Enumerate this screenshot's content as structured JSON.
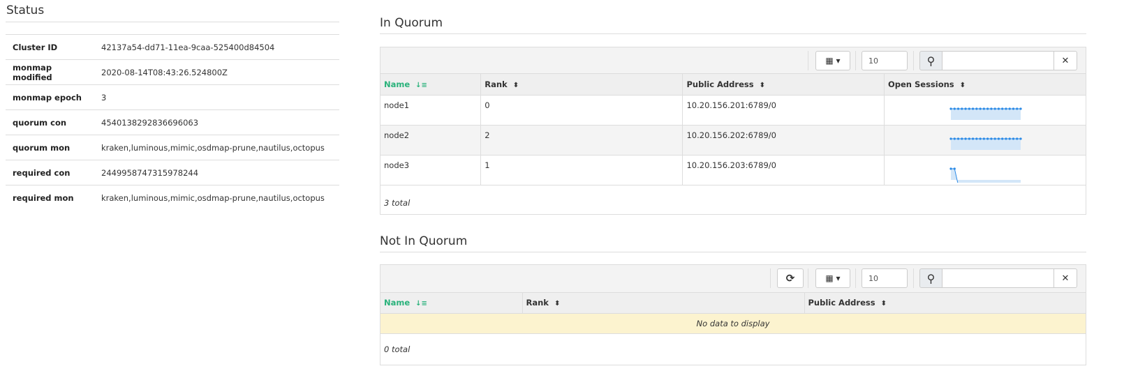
{
  "status": {
    "title": "Status",
    "rows": [
      {
        "key": "Cluster ID",
        "value": "42137a54-dd71-11ea-9caa-525400d84504"
      },
      {
        "key": "monmap modified",
        "value": "2020-08-14T08:43:26.524800Z"
      },
      {
        "key": "monmap epoch",
        "value": "3"
      },
      {
        "key": "quorum con",
        "value": "4540138292836696063"
      },
      {
        "key": "quorum mon",
        "value": "kraken,luminous,mimic,osdmap-prune,nautilus,octopus"
      },
      {
        "key": "required con",
        "value": "2449958747315978244"
      },
      {
        "key": "required mon",
        "value": "kraken,luminous,mimic,osdmap-prune,nautilus,octopus"
      }
    ]
  },
  "in_quorum": {
    "title": "In Quorum",
    "limit": "10",
    "search_placeholder": "",
    "columns": [
      "Name",
      "Rank",
      "Public Address",
      "Open Sessions"
    ],
    "rows": [
      {
        "name": "node1",
        "rank": "0",
        "address": "10.20.156.201:6789/0",
        "sessions": [
          1,
          1,
          1,
          1,
          1,
          1,
          1,
          1,
          1,
          1,
          1,
          1,
          1,
          1,
          1,
          1,
          1,
          1,
          1,
          1
        ]
      },
      {
        "name": "node2",
        "rank": "2",
        "address": "10.20.156.202:6789/0",
        "sessions": [
          1,
          1,
          1,
          1,
          1,
          1,
          1,
          1,
          1,
          1,
          1,
          1,
          1,
          1,
          1,
          1,
          1,
          1,
          1,
          1
        ]
      },
      {
        "name": "node3",
        "rank": "1",
        "address": "10.20.156.203:6789/0",
        "sessions": [
          1,
          1,
          0,
          0,
          0,
          0,
          0,
          0,
          0,
          0,
          0,
          0,
          0,
          0,
          0,
          0,
          0,
          0,
          0,
          0
        ]
      }
    ],
    "total": "3 total"
  },
  "not_in_quorum": {
    "title": "Not In Quorum",
    "limit": "10",
    "search_placeholder": "",
    "columns": [
      "Name",
      "Rank",
      "Public Address"
    ],
    "empty": "No data to display",
    "total": "0 total"
  },
  "colors": {
    "accent": "#2ab27b",
    "spark_line": "#2b8ae6",
    "spark_fill": "#d3e6f8",
    "empty_row": "#fcf3cf"
  }
}
